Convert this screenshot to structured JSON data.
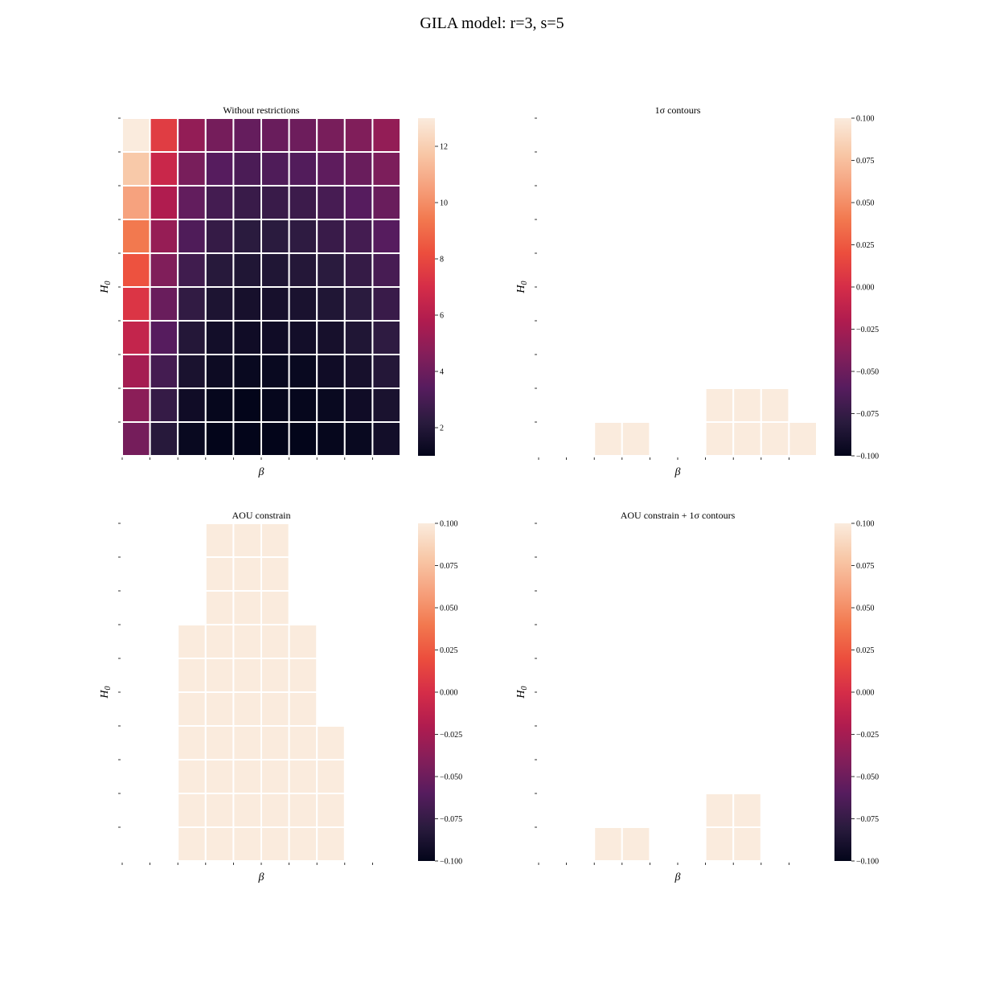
{
  "figure": {
    "suptitle": "GILA model: r=3, s=5"
  },
  "colors": {
    "cell_present": "#faebdd",
    "grid_line": "#ffffff"
  },
  "colormap": [
    "#03051a",
    "#2a1b3e",
    "#561c5e",
    "#841e5a",
    "#b01c4f",
    "#d52d48",
    "#ec4e3d",
    "#f2794f",
    "#f6a27e",
    "#f8c9a9",
    "#faebdd"
  ],
  "chart_data": [
    {
      "type": "heatmap",
      "title": "Without restrictions",
      "xlabel": "β",
      "ylabel": "H0",
      "rows": 10,
      "cols": 10,
      "colorbar": {
        "range": [
          1,
          13
        ],
        "ticks": [
          2,
          4,
          6,
          8,
          10,
          12
        ],
        "labels": [
          "2",
          "4",
          "6",
          "8",
          "10",
          "12"
        ]
      },
      "values": [
        [
          13.0,
          7.6,
          5.0,
          4.2,
          3.8,
          3.9,
          4.0,
          4.3,
          4.5,
          5.0
        ],
        [
          11.8,
          6.6,
          4.3,
          3.4,
          3.1,
          3.2,
          3.3,
          3.6,
          3.9,
          4.4
        ],
        [
          10.6,
          5.8,
          3.7,
          2.9,
          2.6,
          2.6,
          2.7,
          3.0,
          3.4,
          3.9
        ],
        [
          9.4,
          5.1,
          3.2,
          2.5,
          2.2,
          2.2,
          2.3,
          2.6,
          2.9,
          3.4
        ],
        [
          8.3,
          4.5,
          2.8,
          2.1,
          1.9,
          1.9,
          2.0,
          2.2,
          2.5,
          3.0
        ],
        [
          7.3,
          3.9,
          2.4,
          1.8,
          1.6,
          1.6,
          1.7,
          1.9,
          2.2,
          2.6
        ],
        [
          6.4,
          3.4,
          2.0,
          1.5,
          1.4,
          1.4,
          1.5,
          1.6,
          1.9,
          2.3
        ],
        [
          5.5,
          2.9,
          1.7,
          1.3,
          1.2,
          1.2,
          1.2,
          1.4,
          1.6,
          2.0
        ],
        [
          4.8,
          2.5,
          1.4,
          1.1,
          1.0,
          1.1,
          1.1,
          1.2,
          1.4,
          1.7
        ],
        [
          4.2,
          2.1,
          1.2,
          1.0,
          1.0,
          1.0,
          1.0,
          1.1,
          1.2,
          1.5
        ]
      ]
    },
    {
      "type": "heatmap",
      "title": "1σ contours",
      "xlabel": "β",
      "ylabel": "H0",
      "rows": 10,
      "cols": 10,
      "colorbar": {
        "range": [
          -0.1,
          0.1
        ],
        "ticks": [
          -0.1,
          -0.075,
          -0.05,
          -0.025,
          0.0,
          0.025,
          0.05,
          0.075,
          0.1
        ],
        "labels": [
          "−0.100",
          "−0.075",
          "−0.050",
          "−0.025",
          "0.000",
          "0.025",
          "0.050",
          "0.075",
          "0.100"
        ]
      },
      "values": [
        [
          null,
          null,
          null,
          null,
          null,
          null,
          null,
          null,
          null,
          null
        ],
        [
          null,
          null,
          null,
          null,
          null,
          null,
          null,
          null,
          null,
          null
        ],
        [
          null,
          null,
          null,
          null,
          null,
          null,
          null,
          null,
          null,
          null
        ],
        [
          null,
          null,
          null,
          null,
          null,
          null,
          null,
          null,
          null,
          null
        ],
        [
          null,
          null,
          null,
          null,
          null,
          null,
          null,
          null,
          null,
          null
        ],
        [
          null,
          null,
          null,
          null,
          null,
          null,
          null,
          null,
          null,
          null
        ],
        [
          null,
          null,
          null,
          null,
          null,
          null,
          null,
          null,
          null,
          null
        ],
        [
          null,
          null,
          null,
          null,
          null,
          null,
          null,
          null,
          null,
          null
        ],
        [
          null,
          null,
          null,
          null,
          null,
          null,
          0,
          0,
          0,
          null
        ],
        [
          null,
          null,
          0,
          0,
          null,
          null,
          0,
          0,
          0,
          0
        ]
      ]
    },
    {
      "type": "heatmap",
      "title": "AOU constrain",
      "xlabel": "β",
      "ylabel": "H0",
      "rows": 10,
      "cols": 10,
      "colorbar": {
        "range": [
          -0.1,
          0.1
        ],
        "ticks": [
          -0.1,
          -0.075,
          -0.05,
          -0.025,
          0.0,
          0.025,
          0.05,
          0.075,
          0.1
        ],
        "labels": [
          "−0.100",
          "−0.075",
          "−0.050",
          "−0.025",
          "0.000",
          "0.025",
          "0.050",
          "0.075",
          "0.100"
        ]
      },
      "values": [
        [
          null,
          null,
          null,
          0,
          0,
          0,
          null,
          null,
          null,
          null
        ],
        [
          null,
          null,
          null,
          0,
          0,
          0,
          null,
          null,
          null,
          null
        ],
        [
          null,
          null,
          null,
          0,
          0,
          0,
          null,
          null,
          null,
          null
        ],
        [
          null,
          null,
          0,
          0,
          0,
          0,
          0,
          null,
          null,
          null
        ],
        [
          null,
          null,
          0,
          0,
          0,
          0,
          0,
          null,
          null,
          null
        ],
        [
          null,
          null,
          0,
          0,
          0,
          0,
          0,
          null,
          null,
          null
        ],
        [
          null,
          null,
          0,
          0,
          0,
          0,
          0,
          0,
          null,
          null
        ],
        [
          null,
          null,
          0,
          0,
          0,
          0,
          0,
          0,
          null,
          null
        ],
        [
          null,
          null,
          0,
          0,
          0,
          0,
          0,
          0,
          null,
          null
        ],
        [
          null,
          null,
          0,
          0,
          0,
          0,
          0,
          0,
          null,
          null
        ]
      ]
    },
    {
      "type": "heatmap",
      "title": "AOU constrain + 1σ contours",
      "xlabel": "β",
      "ylabel": "H0",
      "rows": 10,
      "cols": 10,
      "colorbar": {
        "range": [
          -0.1,
          0.1
        ],
        "ticks": [
          -0.1,
          -0.075,
          -0.05,
          -0.025,
          0.0,
          0.025,
          0.05,
          0.075,
          0.1
        ],
        "labels": [
          "−0.100",
          "−0.075",
          "−0.050",
          "−0.025",
          "0.000",
          "0.025",
          "0.050",
          "0.075",
          "0.100"
        ]
      },
      "values": [
        [
          null,
          null,
          null,
          null,
          null,
          null,
          null,
          null,
          null,
          null
        ],
        [
          null,
          null,
          null,
          null,
          null,
          null,
          null,
          null,
          null,
          null
        ],
        [
          null,
          null,
          null,
          null,
          null,
          null,
          null,
          null,
          null,
          null
        ],
        [
          null,
          null,
          null,
          null,
          null,
          null,
          null,
          null,
          null,
          null
        ],
        [
          null,
          null,
          null,
          null,
          null,
          null,
          null,
          null,
          null,
          null
        ],
        [
          null,
          null,
          null,
          null,
          null,
          null,
          null,
          null,
          null,
          null
        ],
        [
          null,
          null,
          null,
          null,
          null,
          null,
          null,
          null,
          null,
          null
        ],
        [
          null,
          null,
          null,
          null,
          null,
          null,
          null,
          null,
          null,
          null
        ],
        [
          null,
          null,
          null,
          null,
          null,
          null,
          0,
          0,
          null,
          null
        ],
        [
          null,
          null,
          0,
          0,
          null,
          null,
          0,
          0,
          null,
          null
        ]
      ]
    }
  ]
}
